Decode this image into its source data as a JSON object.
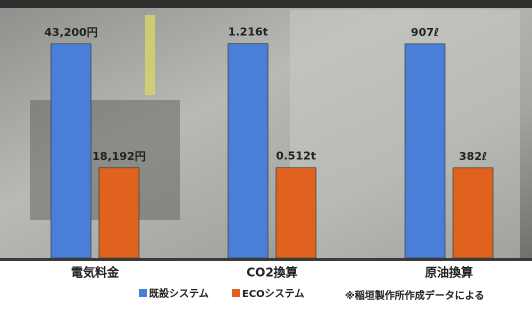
{
  "chart_data": [
    {
      "type": "bar",
      "categories": [
        "電気料金"
      ],
      "ylim": [
        0,
        48000
      ],
      "series": [
        {
          "name": "既設システム",
          "color": "#4a7fd8",
          "values": [
            43200
          ],
          "value_labels": [
            "43,200円"
          ]
        },
        {
          "name": "ECOシステム",
          "color": "#e0621e",
          "values": [
            18192
          ],
          "value_labels": [
            "18,192円"
          ]
        }
      ]
    },
    {
      "type": "bar",
      "categories": [
        "CO2換算"
      ],
      "ylim": [
        0,
        1.35
      ],
      "series": [
        {
          "name": "既設システム",
          "color": "#4a7fd8",
          "values": [
            1.216
          ],
          "value_labels": [
            "1.216t"
          ]
        },
        {
          "name": "ECOシステム",
          "color": "#e0621e",
          "values": [
            0.512
          ],
          "value_labels": [
            "0.512t"
          ]
        }
      ]
    },
    {
      "type": "bar",
      "categories": [
        "原油換算"
      ],
      "ylim": [
        0,
        1008
      ],
      "series": [
        {
          "name": "既設システム",
          "color": "#4a7fd8",
          "values": [
            907
          ],
          "value_labels": [
            "907ℓ"
          ]
        },
        {
          "name": "ECOシステム",
          "color": "#e0621e",
          "values": [
            382
          ],
          "value_labels": [
            "382ℓ"
          ]
        }
      ]
    }
  ],
  "note": "※稲垣製作所作成データによる"
}
